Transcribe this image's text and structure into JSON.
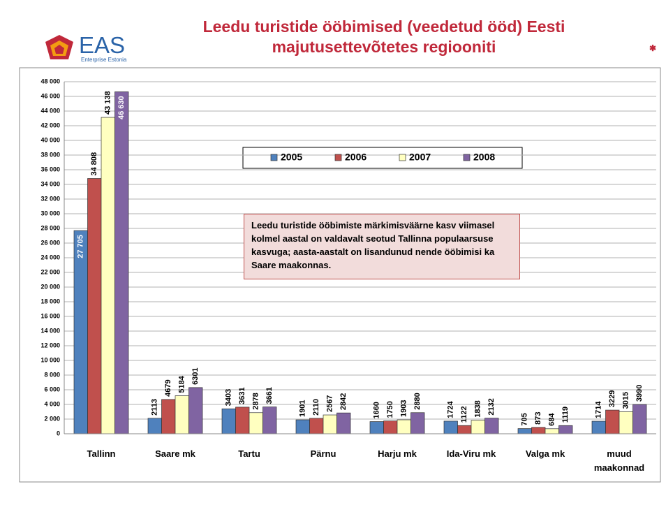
{
  "logo": {
    "name": "EAS",
    "tagline": "Enterprise Estonia"
  },
  "chart_data": {
    "type": "bar",
    "title": "Leedu turistide ööbimised (veedetud ööd) Eesti majutusettevõtetes regiooniti",
    "annotation": "Leedu turistide ööbimiste märkimisväärne kasv viimasel kolmel aastal on valdavalt seotud Tallinna populaarsuse kasvuga; aasta-aastalt on lisandunud nende ööbimisi ka Saare maakonnas.",
    "categories": [
      "Tallinn",
      "Saare mk",
      "Tartu",
      "Pärnu",
      "Harju mk",
      "Ida-Viru mk",
      "Valga mk",
      "muud maakonnad"
    ],
    "series": [
      {
        "name": "2005",
        "color": "#4f81bd",
        "values": [
          27705,
          2113,
          3403,
          1901,
          1660,
          1724,
          705,
          1714
        ],
        "value_labels": [
          "27 705",
          "2113",
          "3403",
          "1901",
          "1660",
          "1724",
          "705",
          "1714"
        ]
      },
      {
        "name": "2006",
        "color": "#c0504d",
        "values": [
          34808,
          4679,
          3631,
          2110,
          1750,
          1122,
          873,
          3229
        ],
        "value_labels": [
          "34 808",
          "4679",
          "3631",
          "2110",
          "1750",
          "1122",
          "873",
          "3229"
        ]
      },
      {
        "name": "2007",
        "color": "#ffffc0",
        "values": [
          43138,
          5184,
          2878,
          2567,
          1903,
          1838,
          684,
          3015
        ],
        "value_labels": [
          "43 138",
          "5184",
          "2878",
          "2567",
          "1903",
          "1838",
          "684",
          "3015"
        ]
      },
      {
        "name": "2008",
        "color": "#8064a2",
        "values": [
          46630,
          6301,
          3661,
          2842,
          2880,
          2132,
          1119,
          3990
        ],
        "value_labels": [
          "46 630",
          "6301",
          "3661",
          "2842",
          "2880",
          "2132",
          "1119",
          "3990"
        ]
      }
    ],
    "ylim": [
      0,
      48000
    ],
    "yticks": [
      0,
      {
        "value": 2000,
        "label": "2 000"
      },
      {
        "value": 4000,
        "label": "4 000"
      },
      {
        "value": 6000,
        "label": "6 000"
      },
      {
        "value": 8000,
        "label": "8 000"
      },
      {
        "value": 10000,
        "label": "10 000"
      },
      {
        "value": 12000,
        "label": "12 000"
      },
      {
        "value": 14000,
        "label": "14 000"
      },
      {
        "value": 16000,
        "label": "16 000"
      },
      {
        "value": 18000,
        "label": "18 000"
      },
      {
        "value": 20000,
        "label": "20 000"
      },
      {
        "value": 22000,
        "label": "22 000"
      },
      {
        "value": 24000,
        "label": "24 000"
      },
      {
        "value": 26000,
        "label": "26 000"
      },
      {
        "value": 28000,
        "label": "28 000"
      },
      {
        "value": 30000,
        "label": "30 000"
      },
      {
        "value": 32000,
        "label": "32 000"
      },
      {
        "value": 34000,
        "label": "34 000"
      },
      {
        "value": 36000,
        "label": "36 000"
      },
      {
        "value": 38000,
        "label": "38 000"
      },
      {
        "value": 40000,
        "label": "40 000"
      },
      {
        "value": 42000,
        "label": "42 000"
      },
      {
        "value": 44000,
        "label": "44 000"
      },
      {
        "value": 46000,
        "label": "46 000"
      },
      {
        "value": 48000,
        "label": "48 000"
      }
    ],
    "grid": true
  }
}
